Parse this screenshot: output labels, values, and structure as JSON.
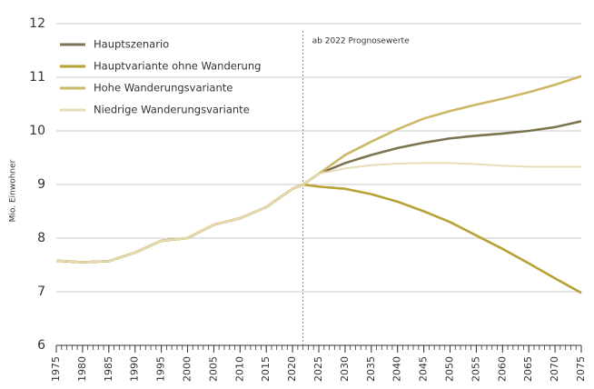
{
  "chart_data": {
    "type": "line",
    "y_label": "Mio. Einwohner",
    "annotation": {
      "x": 2022,
      "text": "ab 2022 Prognosewerte"
    },
    "x": [
      1975,
      1980,
      1985,
      1990,
      1995,
      2000,
      2005,
      2010,
      2015,
      2020,
      2022,
      2025,
      2030,
      2035,
      2040,
      2045,
      2050,
      2055,
      2060,
      2065,
      2070,
      2075
    ],
    "series": [
      {
        "name": "Hauptszenario",
        "color": "#7a7550",
        "values": [
          7.58,
          7.55,
          7.57,
          7.73,
          7.95,
          8.0,
          8.25,
          8.37,
          8.58,
          8.92,
          9.0,
          9.2,
          9.4,
          9.55,
          9.68,
          9.78,
          9.86,
          9.91,
          9.95,
          10.0,
          10.07,
          10.18
        ]
      },
      {
        "name": "Hauptvariante ohne Wanderung",
        "color": "#b8a235",
        "values": [
          7.58,
          7.55,
          7.57,
          7.73,
          7.95,
          8.0,
          8.25,
          8.37,
          8.58,
          8.92,
          9.0,
          8.96,
          8.92,
          8.82,
          8.68,
          8.5,
          8.3,
          8.05,
          7.8,
          7.53,
          7.25,
          6.98
        ]
      },
      {
        "name": "Hohe Wanderungsvariante",
        "color": "#cdb866",
        "values": [
          7.58,
          7.55,
          7.57,
          7.73,
          7.95,
          8.0,
          8.25,
          8.37,
          8.58,
          8.92,
          9.0,
          9.2,
          9.55,
          9.8,
          10.03,
          10.23,
          10.37,
          10.49,
          10.6,
          10.72,
          10.86,
          11.02
        ]
      },
      {
        "name": "Niedrige Wanderungsvariante",
        "color": "#e6dcb6",
        "values": [
          7.58,
          7.55,
          7.57,
          7.73,
          7.95,
          8.0,
          8.25,
          8.37,
          8.58,
          8.92,
          9.0,
          9.2,
          9.3,
          9.36,
          9.39,
          9.4,
          9.4,
          9.38,
          9.35,
          9.33,
          9.33,
          9.33
        ]
      }
    ],
    "xlim": [
      1975,
      2075
    ],
    "xticks": [
      1975,
      1980,
      1985,
      1990,
      1995,
      2000,
      2005,
      2010,
      2015,
      2020,
      2025,
      2030,
      2035,
      2040,
      2045,
      2050,
      2055,
      2060,
      2065,
      2070,
      2075
    ],
    "ylim": [
      6,
      12
    ],
    "yticks": [
      6,
      7,
      8,
      9,
      10,
      11,
      12
    ],
    "grid": true,
    "legend": "top-left"
  }
}
